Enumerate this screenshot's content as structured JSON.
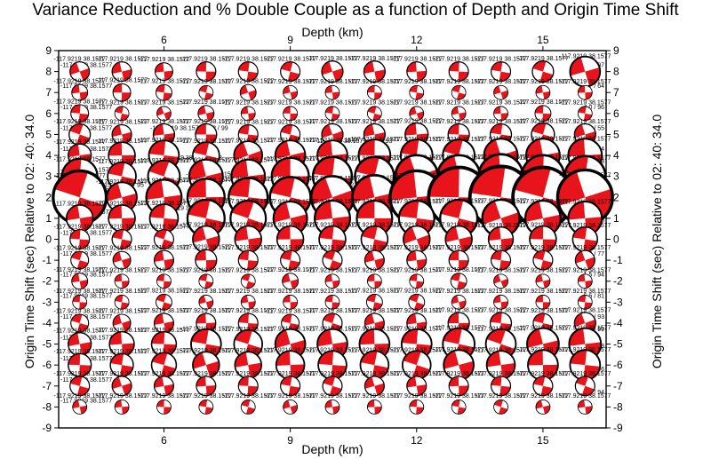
{
  "chart_data": {
    "type": "scatter",
    "title": "Variance Reduction and % Double Couple as a function of Depth and Origin Time Shift",
    "xlabel": "Depth (km)",
    "ylabel": "Origin Time Shift (sec) Relative to 02: 40: 34.0",
    "xlim": [
      3.5,
      16.5
    ],
    "ylim": [
      -9,
      9
    ],
    "xticks": [
      6,
      9,
      12,
      15
    ],
    "yticks": [
      -9,
      -8,
      -7,
      -6,
      -5,
      -4,
      -3,
      -2,
      -1,
      0,
      1,
      2,
      3,
      4,
      5,
      6,
      7,
      8,
      9
    ],
    "grid": false,
    "depths": [
      4,
      5,
      6,
      7,
      8,
      9,
      10,
      11,
      12,
      13,
      14,
      15,
      16
    ],
    "time_shifts": [
      8,
      7,
      6,
      5,
      4,
      3,
      2,
      1,
      0,
      -1,
      -2,
      -3,
      -4,
      -5,
      -6,
      -7,
      -8
    ],
    "mechanism_label": "-117.9219 38.1577",
    "mechanism_color": "#e8141c",
    "left_annotations": [
      {
        "y": 8,
        "text": "-117.9219 38.1577"
      },
      {
        "y": 7,
        "text": "-117.9219 38.1577"
      },
      {
        "y": 6,
        "text": "-117.9219 38.1577"
      },
      {
        "y": 5,
        "text": "-117.9219 38.1577"
      },
      {
        "y": 4,
        "text": "-117.9219 38.1577"
      },
      {
        "y": 3,
        "text": "-117.9219 38.1577"
      },
      {
        "y": 2,
        "text": "-117.9219 38.1577"
      },
      {
        "y": 1,
        "text": "-117.9219 38.1577"
      },
      {
        "y": 0,
        "text": "-117.9219 38.1577"
      },
      {
        "y": -1,
        "text": "-117.9219 38.1577"
      },
      {
        "y": -2,
        "text": "-117.9219 38.1577"
      },
      {
        "y": -3,
        "text": "-117.9219 38.1577"
      },
      {
        "y": -4,
        "text": "-117.9219 38.1577"
      },
      {
        "y": -5,
        "text": "-117.9219 38.1577"
      },
      {
        "y": -6,
        "text": "-117.9219 38.1577"
      },
      {
        "y": -7,
        "text": "-117.9219 38.1577"
      },
      {
        "y": -8,
        "text": "-117.9219 38.1577"
      }
    ],
    "right_annotations": [
      {
        "y": 8,
        "text": "21.5 / 97"
      },
      {
        "y": 7,
        "text": "1.7 / 64"
      },
      {
        "y": 6,
        "text": "4.0 / 96"
      },
      {
        "y": 5,
        "text": "5.8 / 55"
      },
      {
        "y": 4,
        "text": "2.9 / 74"
      },
      {
        "y": 3.4,
        "text": "5.9 / 88"
      },
      {
        "y": 2.6,
        "text": "7.8 / 98"
      },
      {
        "y": 1.5,
        "text": "4.5 / 93"
      },
      {
        "y": 0.6,
        "text": "3.0 / 86"
      },
      {
        "y": -1,
        "text": "4.2 / 77"
      },
      {
        "y": -2,
        "text": "1.5 / 94"
      },
      {
        "y": -3,
        "text": "5.5 / 81"
      },
      {
        "y": -4,
        "text": "1.8 / 93"
      },
      {
        "y": -4.6,
        "text": "2.9 / 99"
      },
      {
        "y": -5.4,
        "text": "3.0 / 98"
      },
      {
        "y": -6.5,
        "text": "5.0 / 96"
      },
      {
        "y": -7.6,
        "text": "4.9 / 94"
      }
    ],
    "inner_annotations": [
      {
        "x": 4.6,
        "y": 2.5,
        "text": "-117.9219 38.1577 55.2 / 95"
      },
      {
        "x": 6.6,
        "y": 3.8,
        "text": "-117.9219 38.1577 67.8"
      },
      {
        "x": 6.6,
        "y": 5.2,
        "text": "-117.9219 38.1577 37.2 / 99"
      },
      {
        "x": 6.6,
        "y": 1.4,
        "text": "-117.9219 38.1577 56.4"
      },
      {
        "x": 7.3,
        "y": 3.0,
        "text": "-117.9219 38.1577 62.3"
      },
      {
        "x": 10.5,
        "y": 4.6,
        "text": "-117.9219 38.1577 41.3 / 93"
      },
      {
        "x": 10.8,
        "y": 2.5,
        "text": "-117.9219 38.1577 76.3"
      }
    ],
    "beachball_sizes": [
      [
        0.55,
        0.55,
        0.5,
        0.55,
        0.55,
        0.55,
        0.6,
        0.6,
        0.55,
        0.55,
        0.55,
        0.6,
        0.85
      ],
      [
        0.45,
        0.5,
        0.45,
        0.4,
        0.45,
        0.4,
        0.4,
        0.4,
        0.4,
        0.4,
        0.4,
        0.4,
        0.4
      ],
      [
        0.5,
        0.4,
        0.4,
        0.45,
        0.4,
        0.4,
        0.4,
        0.4,
        0.4,
        0.4,
        0.4,
        0.45,
        0.4
      ],
      [
        0.6,
        0.55,
        0.6,
        0.6,
        0.55,
        0.55,
        0.6,
        0.6,
        0.65,
        0.6,
        0.6,
        0.65,
        0.6
      ],
      [
        0.65,
        0.75,
        0.85,
        0.75,
        0.8,
        0.85,
        0.85,
        0.9,
        0.9,
        0.9,
        0.95,
        0.95,
        0.95
      ],
      [
        1.0,
        0.8,
        0.9,
        0.95,
        0.95,
        1.05,
        1.1,
        1.1,
        1.2,
        1.2,
        1.25,
        1.2,
        1.15
      ],
      [
        1.5,
        0.85,
        1.0,
        1.05,
        1.1,
        1.15,
        1.2,
        1.25,
        1.5,
        1.7,
        1.75,
        1.7,
        1.55
      ],
      [
        0.75,
        0.75,
        0.8,
        1.05,
        1.0,
        0.95,
        1.0,
        1.0,
        1.0,
        1.05,
        1.05,
        1.0,
        0.95
      ],
      [
        0.55,
        0.55,
        0.55,
        0.75,
        0.75,
        0.75,
        0.75,
        0.75,
        0.75,
        0.75,
        0.7,
        0.75,
        0.7
      ],
      [
        0.5,
        0.5,
        0.55,
        0.6,
        0.55,
        0.55,
        0.55,
        0.55,
        0.55,
        0.55,
        0.55,
        0.55,
        0.55
      ],
      [
        0.45,
        0.4,
        0.4,
        0.4,
        0.4,
        0.45,
        0.4,
        0.4,
        0.4,
        0.45,
        0.4,
        0.4,
        0.4
      ],
      [
        0.4,
        0.4,
        0.45,
        0.4,
        0.4,
        0.4,
        0.4,
        0.45,
        0.45,
        0.4,
        0.4,
        0.4,
        0.4
      ],
      [
        0.5,
        0.5,
        0.55,
        0.55,
        0.55,
        0.5,
        0.55,
        0.55,
        0.55,
        0.6,
        0.6,
        0.55,
        0.6
      ],
      [
        0.65,
        0.7,
        0.7,
        0.85,
        0.8,
        0.85,
        0.85,
        0.85,
        0.85,
        0.9,
        0.85,
        0.9,
        0.9
      ],
      [
        0.65,
        0.65,
        0.7,
        0.75,
        0.75,
        0.8,
        0.8,
        0.8,
        0.8,
        0.85,
        0.8,
        0.85,
        0.85
      ],
      [
        0.55,
        0.55,
        0.55,
        0.55,
        0.55,
        0.55,
        0.55,
        0.55,
        0.55,
        0.55,
        0.55,
        0.55,
        0.55
      ],
      [
        0.4,
        0.4,
        0.4,
        0.4,
        0.4,
        0.4,
        0.4,
        0.4,
        0.4,
        0.4,
        0.4,
        0.4,
        0.4
      ]
    ]
  }
}
